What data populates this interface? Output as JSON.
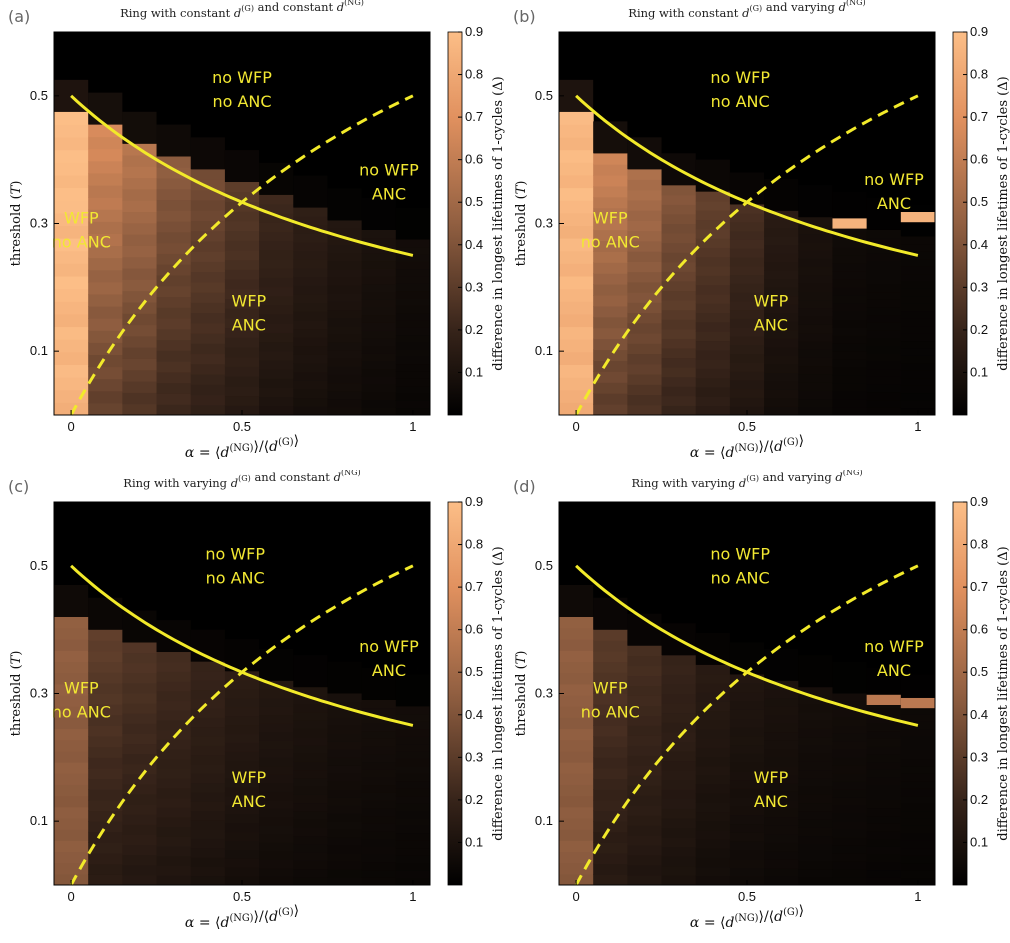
{
  "chart_data": [
    {
      "panel": "(a)",
      "type": "heatmap",
      "title": "Ring with constant d_i^(G) and constant d_i^(NG)",
      "title_parts": [
        "Ring with constant ",
        " and constant "
      ],
      "ylabel": "threshold (T)",
      "xlabel": "α = ⟨d_i^(NG)⟩/⟨d_i^(G)⟩",
      "colorbar_label": "difference in longest lifetimes of 1-cycles (Δ)",
      "x_range": [
        -0.05,
        1.05
      ],
      "y_range": [
        0,
        0.6
      ],
      "x_ticks": [
        "0",
        "0.5",
        "1"
      ],
      "y_ticks": [
        "0.1",
        "0.3",
        "0.5"
      ],
      "colorbar_ticks": [
        "0.1",
        "0.2",
        "0.3",
        "0.4",
        "0.5",
        "0.6",
        "0.7",
        "0.8",
        "0.9"
      ],
      "colorbar_range": [
        0,
        0.9
      ],
      "column_peaks": [
        {
          "x": 0.0,
          "top": 0.475,
          "value": 0.9
        },
        {
          "x": 0.1,
          "top": 0.455,
          "value": 0.68
        },
        {
          "x": 0.2,
          "top": 0.425,
          "value": 0.58
        },
        {
          "x": 0.3,
          "top": 0.405,
          "value": 0.45
        },
        {
          "x": 0.4,
          "top": 0.385,
          "value": 0.38
        },
        {
          "x": 0.5,
          "top": 0.365,
          "value": 0.3
        },
        {
          "x": 0.6,
          "top": 0.345,
          "value": 0.22
        },
        {
          "x": 0.7,
          "top": 0.325,
          "value": 0.17
        },
        {
          "x": 0.8,
          "top": 0.305,
          "value": 0.13
        },
        {
          "x": 0.9,
          "top": 0.29,
          "value": 0.1
        },
        {
          "x": 1.0,
          "top": 0.275,
          "value": 0.07
        }
      ],
      "outliers": [],
      "regions": [
        {
          "lines": [
            "no WFP",
            "no ANC"
          ],
          "x": 0.5,
          "y": 0.52
        },
        {
          "lines": [
            "no WFP",
            "ANC"
          ],
          "x": 0.93,
          "y": 0.375
        },
        {
          "lines": [
            "WFP",
            "no ANC"
          ],
          "x": 0.03,
          "y": 0.3
        },
        {
          "lines": [
            "WFP",
            "ANC"
          ],
          "x": 0.52,
          "y": 0.17
        }
      ],
      "curves": [
        {
          "name": "solid",
          "formula": "T = 0.5/(1+α)"
        },
        {
          "name": "dashed",
          "formula": "T = α/(1+α)"
        }
      ]
    },
    {
      "panel": "(b)",
      "type": "heatmap",
      "title": "Ring with constant d_i^(G) and varying d_i^(NG)",
      "title_parts": [
        "Ring with constant ",
        " and varying "
      ],
      "ylabel": "threshold (T)",
      "xlabel": "α = ⟨d_i^(NG)⟩/⟨d_i^(G)⟩",
      "colorbar_label": "difference in longest lifetimes of 1-cycles (Δ)",
      "x_range": [
        -0.05,
        1.05
      ],
      "y_range": [
        0,
        0.6
      ],
      "x_ticks": [
        "0",
        "0.5",
        "1"
      ],
      "y_ticks": [
        "0.1",
        "0.3",
        "0.5"
      ],
      "colorbar_ticks": [
        "0.1",
        "0.2",
        "0.3",
        "0.4",
        "0.5",
        "0.6",
        "0.7",
        "0.8",
        "0.9"
      ],
      "colorbar_range": [
        0,
        0.9
      ],
      "column_peaks": [
        {
          "x": 0.0,
          "top": 0.475,
          "value": 0.88
        },
        {
          "x": 0.1,
          "top": 0.41,
          "value": 0.65
        },
        {
          "x": 0.2,
          "top": 0.385,
          "value": 0.55
        },
        {
          "x": 0.3,
          "top": 0.36,
          "value": 0.42
        },
        {
          "x": 0.4,
          "top": 0.35,
          "value": 0.33
        },
        {
          "x": 0.5,
          "top": 0.33,
          "value": 0.25
        },
        {
          "x": 0.6,
          "top": 0.32,
          "value": 0.15
        },
        {
          "x": 0.7,
          "top": 0.31,
          "value": 0.1
        },
        {
          "x": 0.8,
          "top": 0.3,
          "value": 0.06
        },
        {
          "x": 0.9,
          "top": 0.29,
          "value": 0.05
        },
        {
          "x": 1.0,
          "top": 0.28,
          "value": 0.04
        }
      ],
      "outliers": [
        {
          "x": 0.8,
          "y": 0.3,
          "value": 0.85
        },
        {
          "x": 1.0,
          "y": 0.31,
          "value": 0.85
        }
      ],
      "regions": [
        {
          "lines": [
            "no WFP",
            "no ANC"
          ],
          "x": 0.48,
          "y": 0.52
        },
        {
          "lines": [
            "no WFP",
            "ANC"
          ],
          "x": 0.93,
          "y": 0.36
        },
        {
          "lines": [
            "WFP",
            "no ANC"
          ],
          "x": 0.1,
          "y": 0.3
        },
        {
          "lines": [
            "WFP",
            "ANC"
          ],
          "x": 0.57,
          "y": 0.17
        }
      ],
      "curves": [
        {
          "name": "solid",
          "formula": "T = 0.5/(1+α)"
        },
        {
          "name": "dashed",
          "formula": "T = α/(1+α)"
        }
      ]
    },
    {
      "panel": "(c)",
      "type": "heatmap",
      "title": "Ring with varying d_i^(G) and constant d_i^(NG)",
      "title_parts": [
        "Ring with varying ",
        " and constant "
      ],
      "ylabel": "threshold (T)",
      "xlabel": "α = ⟨d_i^(NG)⟩/⟨d_i^(G)⟩",
      "colorbar_label": "difference in longest lifetimes of 1-cycles (Δ)",
      "x_range": [
        -0.05,
        1.05
      ],
      "y_range": [
        0,
        0.6
      ],
      "x_ticks": [
        "0",
        "0.5",
        "1"
      ],
      "y_ticks": [
        "0.1",
        "0.3",
        "0.5"
      ],
      "colorbar_ticks": [
        "0.1",
        "0.2",
        "0.3",
        "0.4",
        "0.5",
        "0.6",
        "0.7",
        "0.8",
        "0.9"
      ],
      "colorbar_range": [
        0,
        0.9
      ],
      "column_peaks": [
        {
          "x": 0.0,
          "top": 0.42,
          "value": 0.45
        },
        {
          "x": 0.1,
          "top": 0.4,
          "value": 0.32
        },
        {
          "x": 0.2,
          "top": 0.38,
          "value": 0.28
        },
        {
          "x": 0.3,
          "top": 0.365,
          "value": 0.24
        },
        {
          "x": 0.4,
          "top": 0.35,
          "value": 0.2
        },
        {
          "x": 0.5,
          "top": 0.335,
          "value": 0.16
        },
        {
          "x": 0.6,
          "top": 0.32,
          "value": 0.13
        },
        {
          "x": 0.7,
          "top": 0.31,
          "value": 0.11
        },
        {
          "x": 0.8,
          "top": 0.3,
          "value": 0.09
        },
        {
          "x": 0.9,
          "top": 0.29,
          "value": 0.08
        },
        {
          "x": 1.0,
          "top": 0.28,
          "value": 0.07
        }
      ],
      "outliers": [],
      "regions": [
        {
          "lines": [
            "no WFP",
            "no ANC"
          ],
          "x": 0.48,
          "y": 0.51
        },
        {
          "lines": [
            "no WFP",
            "ANC"
          ],
          "x": 0.93,
          "y": 0.365
        },
        {
          "lines": [
            "WFP",
            "no ANC"
          ],
          "x": 0.03,
          "y": 0.3
        },
        {
          "lines": [
            "WFP",
            "ANC"
          ],
          "x": 0.52,
          "y": 0.16
        }
      ],
      "curves": [
        {
          "name": "solid",
          "formula": "T = 0.5/(1+α)"
        },
        {
          "name": "dashed",
          "formula": "T = α/(1+α)"
        }
      ]
    },
    {
      "panel": "(d)",
      "type": "heatmap",
      "title": "Ring with varying d_i^(G) and varying d_i^(NG)",
      "title_parts": [
        "Ring with varying ",
        " and varying "
      ],
      "ylabel": "threshold (T)",
      "xlabel": "α = ⟨d_i^(NG)⟩/⟨d_i^(G)⟩",
      "colorbar_label": "difference in longest lifetimes of 1-cycles (Δ)",
      "x_range": [
        -0.05,
        1.05
      ],
      "y_range": [
        0,
        0.6
      ],
      "x_ticks": [
        "0",
        "0.5",
        "1"
      ],
      "y_ticks": [
        "0.1",
        "0.3",
        "0.5"
      ],
      "colorbar_ticks": [
        "0.1",
        "0.2",
        "0.3",
        "0.4",
        "0.5",
        "0.6",
        "0.7",
        "0.8",
        "0.9"
      ],
      "colorbar_range": [
        0,
        0.9
      ],
      "column_peaks": [
        {
          "x": 0.0,
          "top": 0.42,
          "value": 0.45
        },
        {
          "x": 0.1,
          "top": 0.4,
          "value": 0.3
        },
        {
          "x": 0.2,
          "top": 0.375,
          "value": 0.25
        },
        {
          "x": 0.3,
          "top": 0.36,
          "value": 0.2
        },
        {
          "x": 0.4,
          "top": 0.345,
          "value": 0.15
        },
        {
          "x": 0.5,
          "top": 0.33,
          "value": 0.12
        },
        {
          "x": 0.6,
          "top": 0.32,
          "value": 0.1
        },
        {
          "x": 0.7,
          "top": 0.31,
          "value": 0.08
        },
        {
          "x": 0.8,
          "top": 0.3,
          "value": 0.07
        },
        {
          "x": 0.9,
          "top": 0.29,
          "value": 0.06
        },
        {
          "x": 1.0,
          "top": 0.28,
          "value": 0.05
        }
      ],
      "outliers": [
        {
          "x": 0.9,
          "y": 0.29,
          "value": 0.58
        },
        {
          "x": 1.0,
          "y": 0.285,
          "value": 0.58
        }
      ],
      "regions": [
        {
          "lines": [
            "no WFP",
            "no ANC"
          ],
          "x": 0.48,
          "y": 0.51
        },
        {
          "lines": [
            "no WFP",
            "ANC"
          ],
          "x": 0.93,
          "y": 0.365
        },
        {
          "lines": [
            "WFP",
            "no ANC"
          ],
          "x": 0.1,
          "y": 0.3
        },
        {
          "lines": [
            "WFP",
            "ANC"
          ],
          "x": 0.57,
          "y": 0.16
        }
      ],
      "curves": [
        {
          "name": "solid",
          "formula": "T = 0.5/(1+α)"
        },
        {
          "name": "dashed",
          "formula": "T = α/(1+α)"
        }
      ]
    }
  ]
}
